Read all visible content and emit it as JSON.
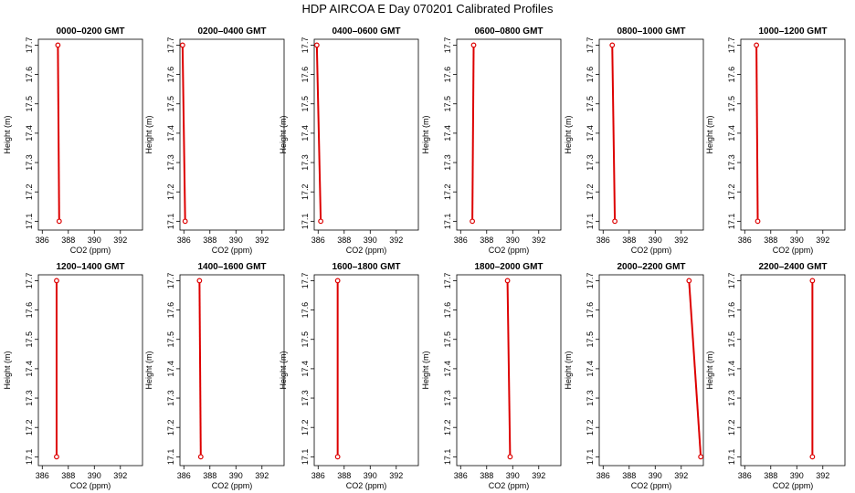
{
  "title": "HDP  AIRCOA E  Day 070201  Calibrated Profiles",
  "chart_data": {
    "type": "line",
    "series_color": "#dd0000",
    "grid": false,
    "xlabel": "CO2 (ppm)",
    "ylabel": "Height (m)",
    "xlim": [
      385.7,
      393.7
    ],
    "ylim": [
      17.07,
      17.72
    ],
    "xticks": [
      386,
      388,
      390,
      392
    ],
    "yticks": [
      17.1,
      17.2,
      17.3,
      17.4,
      17.5,
      17.6,
      17.7
    ],
    "panels": [
      {
        "title": "0000–0200 GMT",
        "points": [
          {
            "x": 387.2,
            "y": 17.7
          },
          {
            "x": 387.3,
            "y": 17.1
          }
        ]
      },
      {
        "title": "0200–0400 GMT",
        "points": [
          {
            "x": 385.9,
            "y": 17.7
          },
          {
            "x": 386.1,
            "y": 17.1
          }
        ]
      },
      {
        "title": "0400–0600 GMT",
        "points": [
          {
            "x": 385.9,
            "y": 17.7
          },
          {
            "x": 386.2,
            "y": 17.1
          }
        ]
      },
      {
        "title": "0600–0800 GMT",
        "points": [
          {
            "x": 387.0,
            "y": 17.7
          },
          {
            "x": 386.9,
            "y": 17.1
          }
        ]
      },
      {
        "title": "0800–1000 GMT",
        "points": [
          {
            "x": 386.7,
            "y": 17.7
          },
          {
            "x": 386.9,
            "y": 17.1
          }
        ]
      },
      {
        "title": "1000–1200 GMT",
        "points": [
          {
            "x": 386.9,
            "y": 17.7
          },
          {
            "x": 387.0,
            "y": 17.1
          }
        ]
      },
      {
        "title": "1200–1400 GMT",
        "points": [
          {
            "x": 387.1,
            "y": 17.7
          },
          {
            "x": 387.1,
            "y": 17.1
          }
        ]
      },
      {
        "title": "1400–1600 GMT",
        "points": [
          {
            "x": 387.2,
            "y": 17.7
          },
          {
            "x": 387.3,
            "y": 17.1
          }
        ]
      },
      {
        "title": "1600–1800 GMT",
        "points": [
          {
            "x": 387.5,
            "y": 17.7
          },
          {
            "x": 387.5,
            "y": 17.1
          }
        ]
      },
      {
        "title": "1800–2000 GMT",
        "points": [
          {
            "x": 389.6,
            "y": 17.7
          },
          {
            "x": 389.8,
            "y": 17.1
          }
        ]
      },
      {
        "title": "2000–2200 GMT",
        "points": [
          {
            "x": 392.6,
            "y": 17.7
          },
          {
            "x": 393.5,
            "y": 17.1
          }
        ]
      },
      {
        "title": "2200–2400 GMT",
        "points": [
          {
            "x": 391.2,
            "y": 17.7
          },
          {
            "x": 391.2,
            "y": 17.1
          }
        ]
      }
    ]
  }
}
